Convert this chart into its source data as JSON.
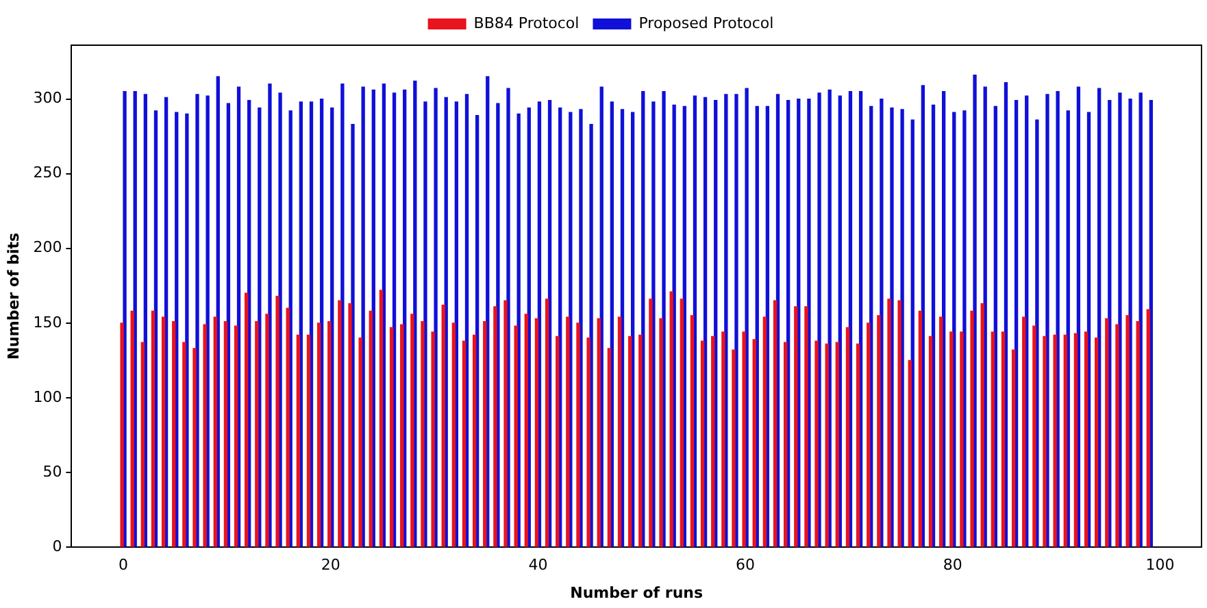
{
  "chart_data": {
    "type": "bar",
    "xlabel": "Number of runs",
    "ylabel": "Number of bits",
    "x": [
      0,
      1,
      2,
      3,
      4,
      5,
      6,
      7,
      8,
      9,
      10,
      11,
      12,
      13,
      14,
      15,
      16,
      17,
      18,
      19,
      20,
      21,
      22,
      23,
      24,
      25,
      26,
      27,
      28,
      29,
      30,
      31,
      32,
      33,
      34,
      35,
      36,
      37,
      38,
      39,
      40,
      41,
      42,
      43,
      44,
      45,
      46,
      47,
      48,
      49,
      50,
      51,
      52,
      53,
      54,
      55,
      56,
      57,
      58,
      59,
      60,
      61,
      62,
      63,
      64,
      65,
      66,
      67,
      68,
      69,
      70,
      71,
      72,
      73,
      74,
      75,
      76,
      77,
      78,
      79,
      80,
      81,
      82,
      83,
      84,
      85,
      86,
      87,
      88,
      89,
      90,
      91,
      92,
      93,
      94,
      95,
      96,
      97,
      98,
      99
    ],
    "series": [
      {
        "name": "BB84 Protocol",
        "color": "#e8141e",
        "values": [
          150,
          158,
          137,
          158,
          154,
          151,
          137,
          133,
          149,
          154,
          151,
          148,
          170,
          151,
          156,
          168,
          160,
          142,
          142,
          150,
          151,
          165,
          163,
          140,
          158,
          172,
          147,
          149,
          156,
          151,
          144,
          162,
          150,
          138,
          142,
          151,
          161,
          165,
          148,
          156,
          153,
          166,
          141,
          154,
          150,
          140,
          153,
          133,
          154,
          141,
          142,
          166,
          153,
          171,
          166,
          155,
          138,
          141,
          144,
          132,
          144,
          139,
          154,
          165,
          137,
          161,
          161,
          138,
          136,
          137,
          147,
          136,
          150,
          155,
          166,
          165,
          125,
          158,
          141,
          154,
          144,
          144,
          158,
          163,
          144,
          144,
          132,
          154,
          148,
          141,
          142,
          142,
          143,
          144,
          140,
          153,
          149,
          155,
          151,
          159
        ]
      },
      {
        "name": "Proposed Protocol",
        "color": "#1010d8",
        "values": [
          305,
          305,
          303,
          292,
          301,
          291,
          290,
          303,
          302,
          315,
          297,
          308,
          299,
          294,
          310,
          304,
          292,
          298,
          298,
          300,
          294,
          310,
          283,
          308,
          306,
          310,
          304,
          306,
          312,
          298,
          307,
          301,
          298,
          303,
          289,
          315,
          297,
          307,
          290,
          294,
          298,
          299,
          294,
          291,
          293,
          283,
          308,
          298,
          293,
          291,
          305,
          298,
          305,
          296,
          295,
          302,
          301,
          299,
          303,
          303,
          307,
          295,
          295,
          303,
          299,
          300,
          300,
          304,
          306,
          302,
          305,
          305,
          295,
          300,
          294,
          293,
          286,
          309,
          296,
          305,
          291,
          292,
          316,
          308,
          295,
          311,
          299,
          302,
          286,
          303,
          305,
          292,
          308,
          291,
          307,
          299,
          304,
          300,
          304,
          299
        ]
      }
    ],
    "xlim": [
      -5,
      104
    ],
    "xticks": [
      0,
      20,
      40,
      60,
      80,
      100
    ],
    "ylim": [
      0,
      336
    ],
    "yticks": [
      0,
      50,
      100,
      150,
      200,
      250,
      300
    ],
    "grid": false,
    "legend": "top"
  }
}
